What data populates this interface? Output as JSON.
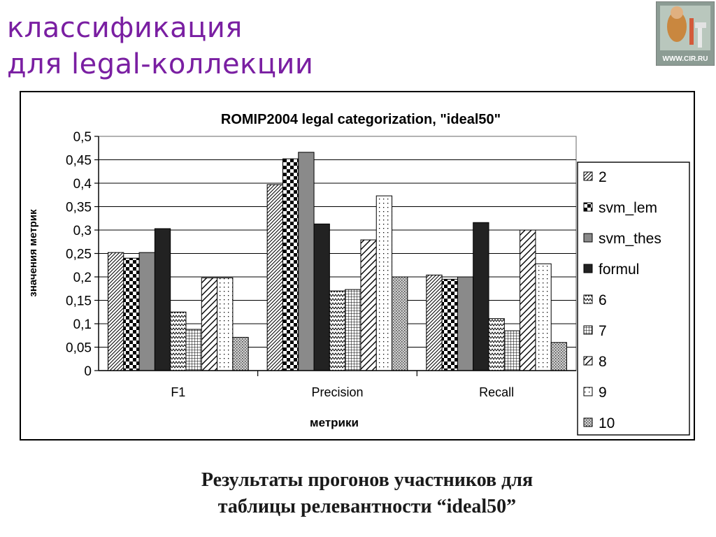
{
  "slide": {
    "title_line1": "классификация",
    "title_line2": "для legal-коллекции",
    "logo_text": "WWW.CIR.RU",
    "caption_line1": "Результаты прогонов участников для",
    "caption_line2": "таблицы релевантности  “ideal50”"
  },
  "chart_data": {
    "type": "bar",
    "title": "ROMIP2004 legal categorization, \"ideal50\"",
    "xlabel": "метрики",
    "ylabel": "значения метрик",
    "categories": [
      "F1",
      "Precision",
      "Recall"
    ],
    "ylim": [
      0,
      0.5
    ],
    "yticks": [
      "0",
      "0,05",
      "0,1",
      "0,15",
      "0,2",
      "0,25",
      "0,3",
      "0,35",
      "0,4",
      "0,45",
      "0,5"
    ],
    "grid": true,
    "legend_position": "right",
    "series": [
      {
        "name": "2",
        "values": [
          0.252,
          0.397,
          0.204
        ],
        "pattern": "diag-fine"
      },
      {
        "name": "svm_lem",
        "values": [
          0.24,
          0.452,
          0.195
        ],
        "pattern": "checker"
      },
      {
        "name": "svm_thes",
        "values": [
          0.252,
          0.466,
          0.2
        ],
        "pattern": "gray"
      },
      {
        "name": "formul",
        "values": [
          0.303,
          0.313,
          0.316
        ],
        "pattern": "dark"
      },
      {
        "name": "6",
        "values": [
          0.125,
          0.17,
          0.111
        ],
        "pattern": "zigzag"
      },
      {
        "name": "7",
        "values": [
          0.088,
          0.173,
          0.085
        ],
        "pattern": "grid"
      },
      {
        "name": "8",
        "values": [
          0.198,
          0.279,
          0.3
        ],
        "pattern": "diag-wide"
      },
      {
        "name": "9",
        "values": [
          0.198,
          0.373,
          0.228
        ],
        "pattern": "dots"
      },
      {
        "name": "10",
        "values": [
          0.071,
          0.2,
          0.06
        ],
        "pattern": "speckle"
      }
    ]
  }
}
